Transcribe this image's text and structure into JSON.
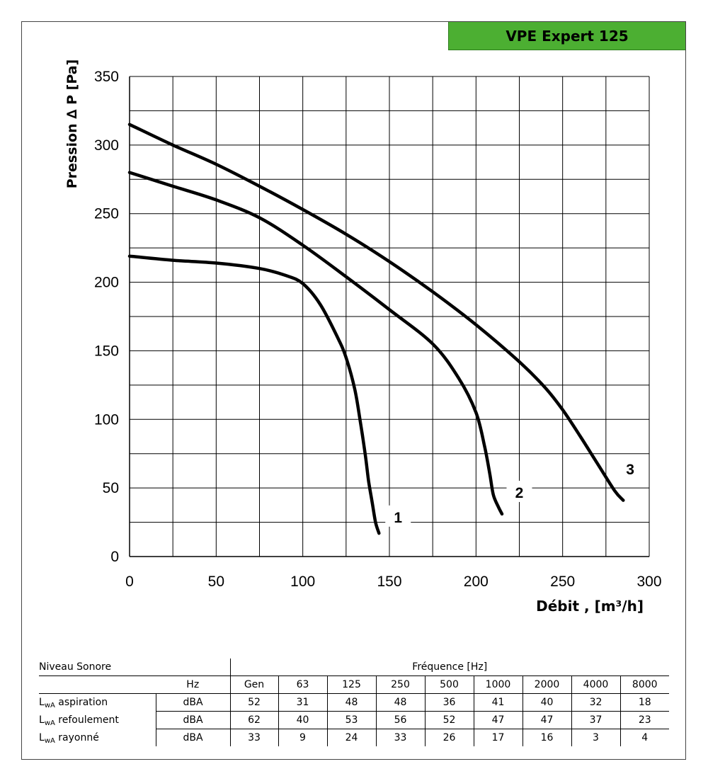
{
  "title": "VPE Expert 125",
  "chart_data": {
    "type": "line",
    "title": "VPE Expert 125",
    "xlabel": "Débit , [m³/h]",
    "ylabel": "Pression ∆ P [Pa]",
    "xlim": [
      0,
      300
    ],
    "ylim": [
      0,
      350
    ],
    "x_ticks": [
      "0",
      "50",
      "100",
      "150",
      "200",
      "250",
      "300"
    ],
    "y_ticks": [
      "0",
      "50",
      "100",
      "150",
      "200",
      "250",
      "300",
      "350"
    ],
    "grid": true,
    "series": [
      {
        "name": "1",
        "points": [
          [
            0,
            219
          ],
          [
            25,
            216
          ],
          [
            50,
            214
          ],
          [
            75,
            210
          ],
          [
            90,
            205
          ],
          [
            100,
            199
          ],
          [
            110,
            184
          ],
          [
            120,
            160
          ],
          [
            125,
            145
          ],
          [
            130,
            122
          ],
          [
            133,
            100
          ],
          [
            136,
            75
          ],
          [
            138,
            55
          ],
          [
            140,
            40
          ],
          [
            142,
            25
          ],
          [
            144,
            17
          ]
        ]
      },
      {
        "name": "2",
        "points": [
          [
            0,
            280
          ],
          [
            25,
            270
          ],
          [
            50,
            260
          ],
          [
            75,
            247
          ],
          [
            100,
            227
          ],
          [
            125,
            204
          ],
          [
            150,
            180
          ],
          [
            175,
            155
          ],
          [
            190,
            130
          ],
          [
            200,
            105
          ],
          [
            205,
            80
          ],
          [
            208,
            60
          ],
          [
            210,
            45
          ],
          [
            213,
            36
          ],
          [
            215,
            31
          ]
        ]
      },
      {
        "name": "3",
        "points": [
          [
            0,
            315
          ],
          [
            25,
            300
          ],
          [
            50,
            286
          ],
          [
            75,
            270
          ],
          [
            100,
            253
          ],
          [
            125,
            235
          ],
          [
            150,
            215
          ],
          [
            175,
            193
          ],
          [
            200,
            169
          ],
          [
            225,
            142
          ],
          [
            240,
            123
          ],
          [
            250,
            107
          ],
          [
            260,
            88
          ],
          [
            270,
            68
          ],
          [
            280,
            48
          ],
          [
            285,
            41
          ]
        ]
      }
    ],
    "curve_labels": [
      "1",
      "2",
      "3"
    ]
  },
  "noise_table": {
    "heading": "Niveau Sonore",
    "frequency_heading": "Fréquence [Hz]",
    "hz_label": "Hz",
    "frequencies": [
      "Gen",
      "63",
      "125",
      "250",
      "500",
      "1000",
      "2000",
      "4000",
      "8000"
    ],
    "rows": [
      {
        "prefix": "L",
        "sub": "wA",
        "name": "aspiration",
        "unit": "dBA",
        "values": [
          "52",
          "31",
          "48",
          "48",
          "36",
          "41",
          "40",
          "32",
          "18"
        ]
      },
      {
        "prefix": "L",
        "sub": "wA",
        "name": "refoulement",
        "unit": "dBA",
        "values": [
          "62",
          "40",
          "53",
          "56",
          "52",
          "47",
          "47",
          "37",
          "23"
        ]
      },
      {
        "prefix": "L",
        "sub": "wA",
        "name": "rayonné",
        "unit": "dBA",
        "values": [
          "33",
          "9",
          "24",
          "33",
          "26",
          "17",
          "16",
          "3",
          "4"
        ]
      }
    ]
  }
}
